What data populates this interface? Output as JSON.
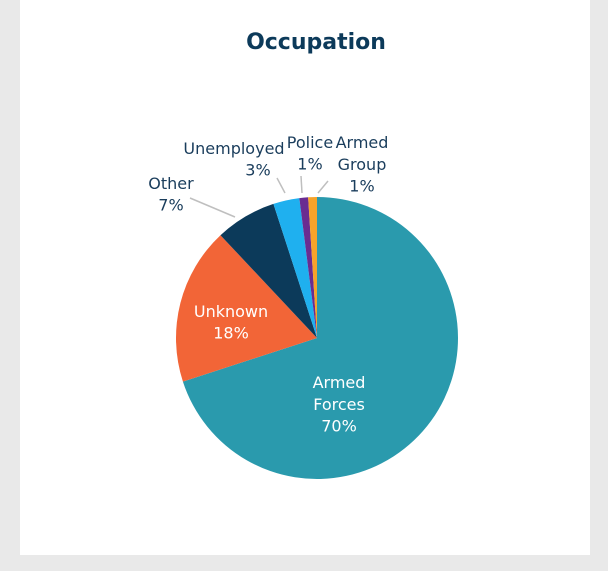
{
  "chart_data": {
    "type": "pie",
    "title": "Occupation",
    "categories": [
      "Armed Forces",
      "Unknown",
      "Other",
      "Unemployed",
      "Police",
      "Armed Group"
    ],
    "values": [
      70,
      18,
      7,
      3,
      1,
      1
    ],
    "value_labels": [
      "70%",
      "18%",
      "7%",
      "3%",
      "1%",
      "1%"
    ],
    "colors": [
      "#2a9aad",
      "#f26537",
      "#0c3a5a",
      "#1fb0ef",
      "#6a2c91",
      "#f7a32a"
    ]
  }
}
